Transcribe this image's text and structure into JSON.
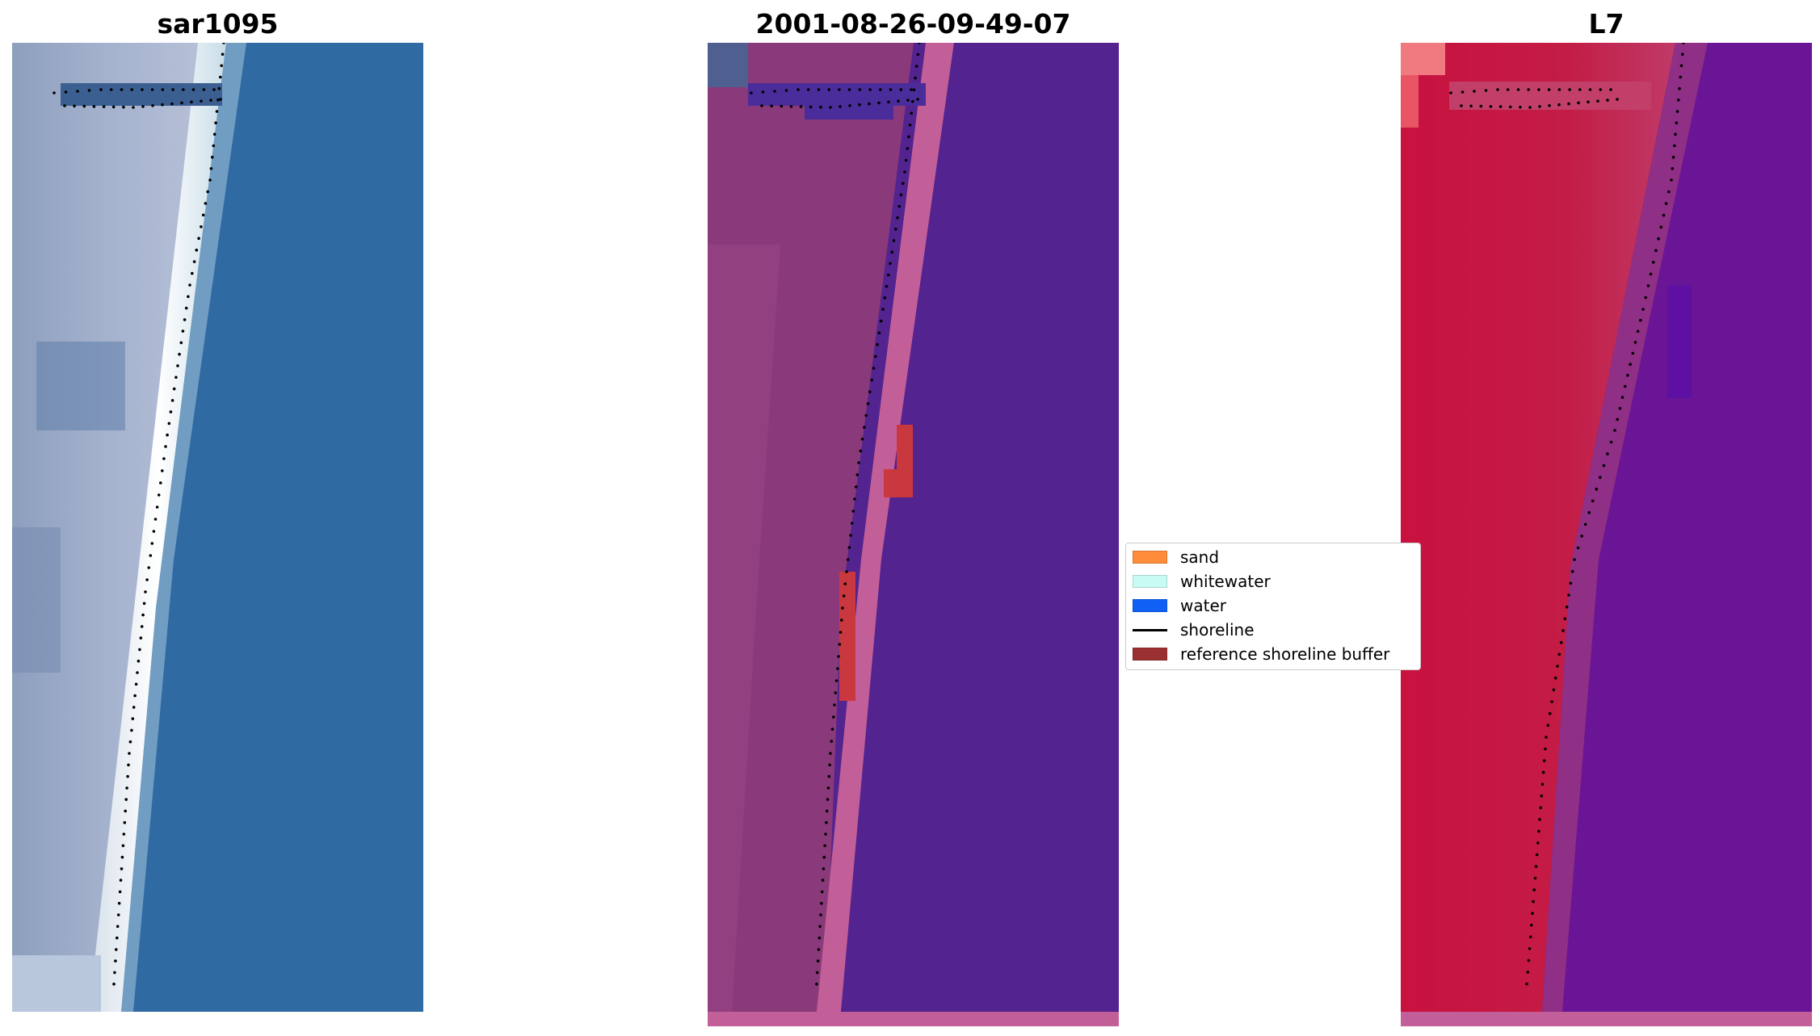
{
  "panels": [
    {
      "title": "sar1095",
      "kind": "rgb"
    },
    {
      "title": "2001-08-26-09-49-07",
      "kind": "classified"
    },
    {
      "title": "L7",
      "kind": "index"
    }
  ],
  "legend": {
    "items": [
      {
        "label": "sand",
        "color": "#ff8c3a",
        "type": "patch"
      },
      {
        "label": "whitewater",
        "color": "#c8fbf4",
        "type": "patch"
      },
      {
        "label": "water",
        "color": "#1060f5",
        "type": "patch"
      },
      {
        "label": "shoreline",
        "color": "#000000",
        "type": "line"
      },
      {
        "label": "reference shoreline buffer",
        "color": "#9b3030",
        "type": "patch"
      }
    ]
  },
  "colors": {
    "sea_blue": "#2f6aa3",
    "land_blue_grey": "#7f93b5",
    "surf_white": "#eef6f4",
    "class_water_purple": "#53238f",
    "class_land_mauve": "#8a3a7a",
    "class_surf_pink": "#c35f98",
    "class_buffer_red": "#c9383e",
    "index_land_red": "#c2163e",
    "index_sea_purple": "#6a1596"
  }
}
